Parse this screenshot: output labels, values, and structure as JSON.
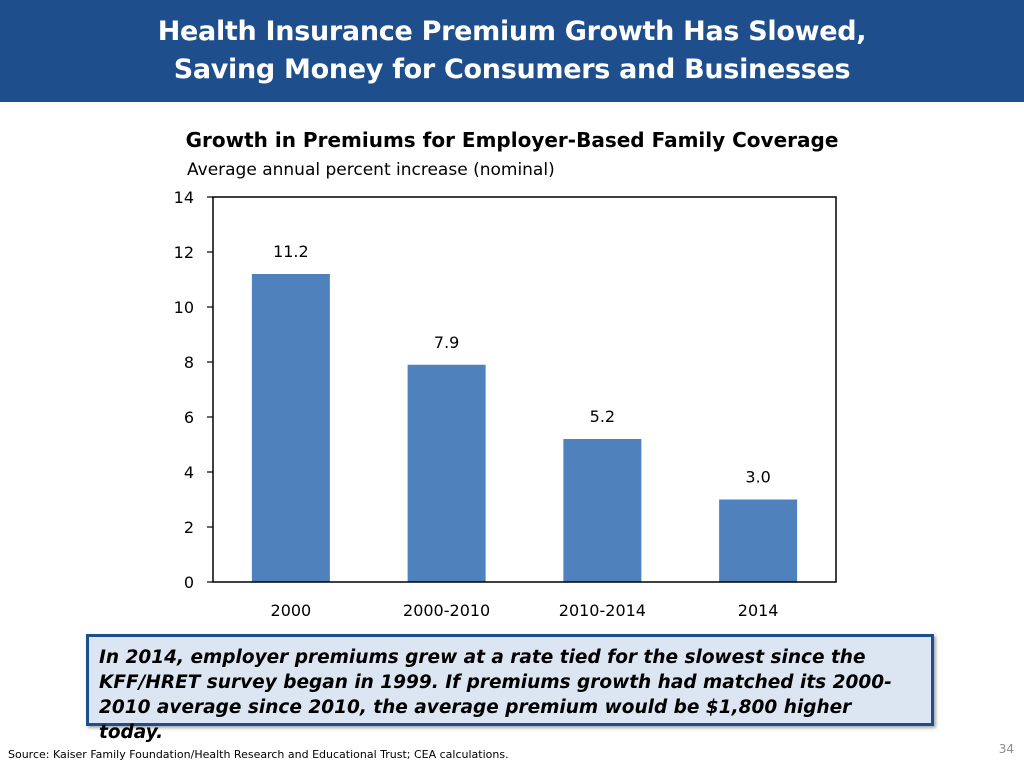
{
  "slide": {
    "title_line1": "Health Insurance Premium Growth Has Slowed,",
    "title_line2": "Saving Money for Consumers and Businesses",
    "callout": "In 2014, employer premiums grew at a rate tied for the slowest since the KFF/HRET survey began in 1999. If premiums growth had matched its 2000-2010 average since 2010, the average premium would be $1,800 higher today.",
    "source": "Source: Kaiser Family Foundation/Health Research and Educational Trust; CEA calculations.",
    "page_number": "34",
    "colors": {
      "header": "#1f4e8c",
      "bar": "#4f81bd",
      "callout_bg": "#dce6f2"
    }
  },
  "chart_data": {
    "type": "bar",
    "title": "Growth in Premiums for Employer-Based Family Coverage",
    "subtitle": "Average annual percent increase (nominal)",
    "categories": [
      "2000",
      "2000-2010",
      "2010-2014",
      "2014"
    ],
    "values": [
      11.2,
      7.9,
      5.2,
      3.0
    ],
    "data_labels": [
      "11.2",
      "7.9",
      "5.2",
      "3.0"
    ],
    "ylim": [
      0,
      14
    ],
    "yticks": [
      0,
      2,
      4,
      6,
      8,
      10,
      12,
      14
    ],
    "grid": false,
    "legend": "none"
  }
}
